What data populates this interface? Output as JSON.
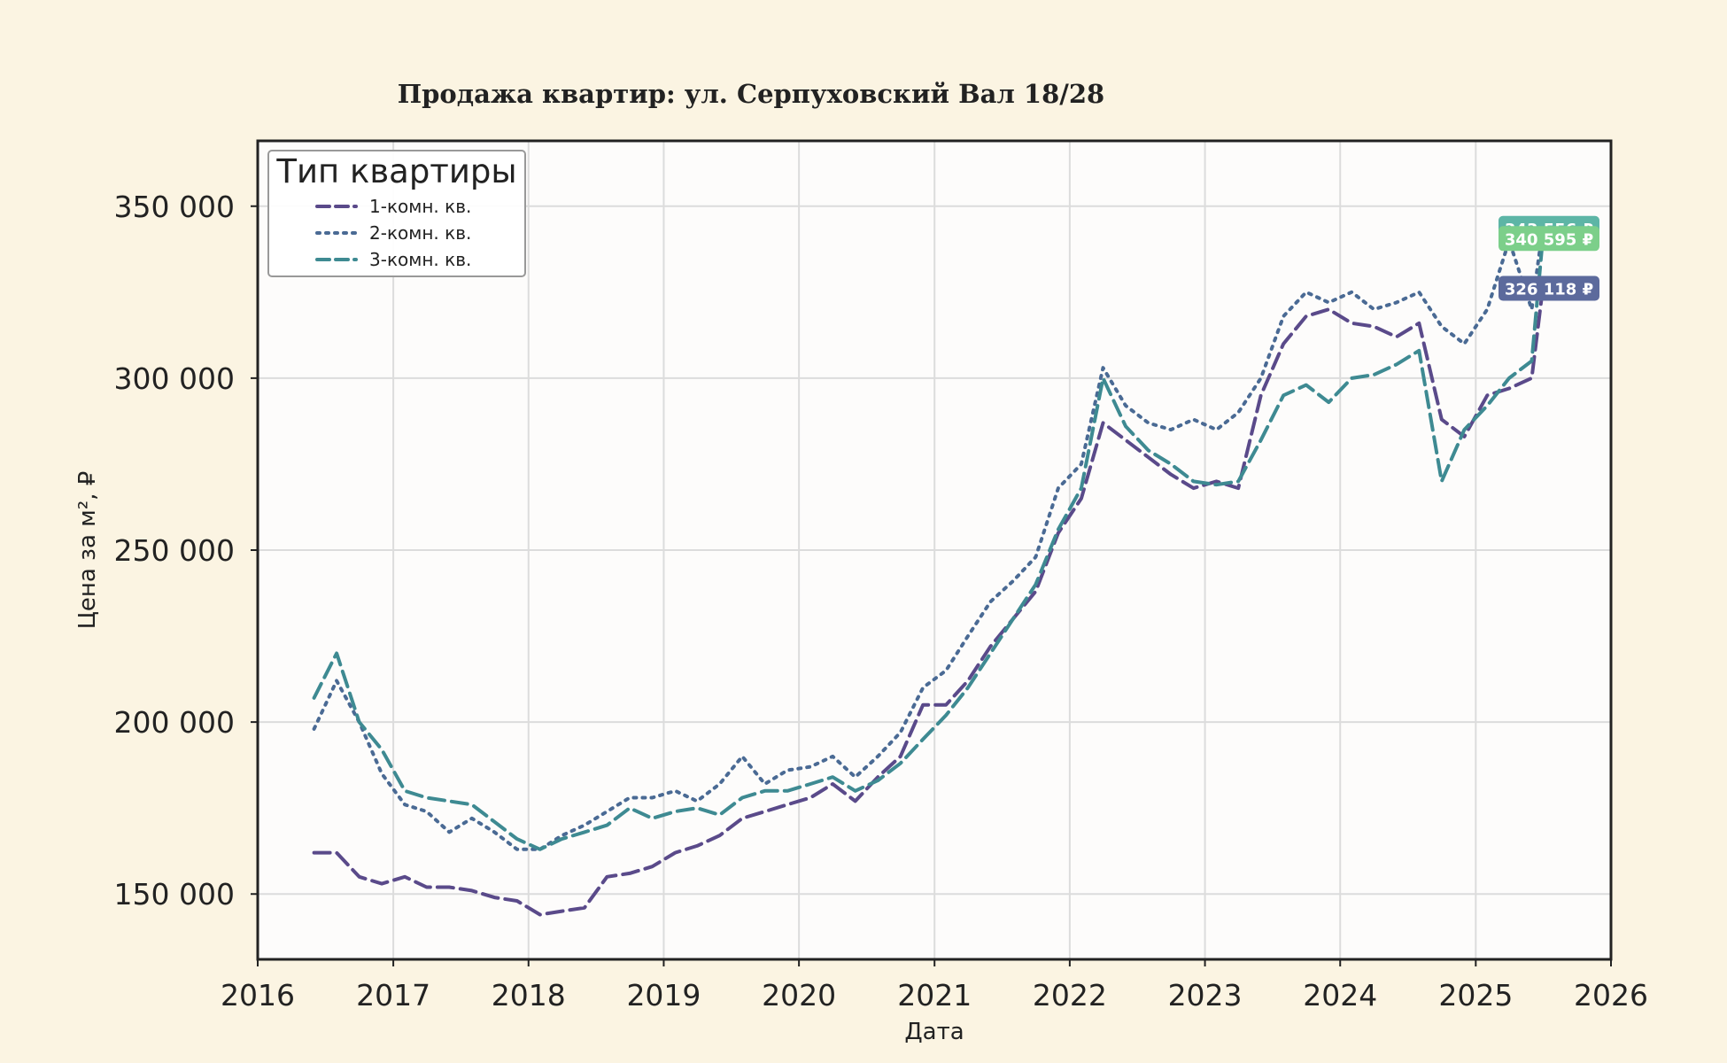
{
  "chart_data": {
    "type": "line",
    "title": "Продажа квартир: ул. Серпуховский Вал 18/28",
    "xlabel": "Дата",
    "ylabel": "Цена за м², ₽",
    "xlim": [
      "2016-01-01",
      "2026-01-01"
    ],
    "ylim": [
      131000,
      369000
    ],
    "x_ticks": [
      "2016",
      "2017",
      "2018",
      "2019",
      "2020",
      "2021",
      "2022",
      "2023",
      "2024",
      "2025",
      "2026"
    ],
    "y_ticks": [
      150000,
      200000,
      250000,
      300000,
      350000
    ],
    "y_tick_labels": [
      "150 000",
      "200 000",
      "250 000",
      "300 000",
      "350 000"
    ],
    "grid": true,
    "legend": {
      "title": "Тип квартиры",
      "position": "top-left"
    },
    "series": [
      {
        "name": "1-комн. кв.",
        "color": "#5a4a8a",
        "style": "dashed",
        "end_label": "326 118 ₽",
        "end_label_color": "#5c6a9c",
        "x": [
          "2016-06-01",
          "2016-08-01",
          "2016-10-01",
          "2016-12-01",
          "2017-02-01",
          "2017-04-01",
          "2017-06-01",
          "2017-08-01",
          "2017-10-01",
          "2017-12-01",
          "2018-02-01",
          "2018-04-01",
          "2018-06-01",
          "2018-08-01",
          "2018-10-01",
          "2018-12-01",
          "2019-02-01",
          "2019-04-01",
          "2019-06-01",
          "2019-08-01",
          "2019-10-01",
          "2019-12-01",
          "2020-02-01",
          "2020-04-01",
          "2020-06-01",
          "2020-08-01",
          "2020-10-01",
          "2020-12-01",
          "2021-02-01",
          "2021-04-01",
          "2021-06-01",
          "2021-08-01",
          "2021-10-01",
          "2021-12-01",
          "2022-02-01",
          "2022-04-01",
          "2022-06-01",
          "2022-08-01",
          "2022-10-01",
          "2022-12-01",
          "2023-02-01",
          "2023-04-01",
          "2023-06-01",
          "2023-08-01",
          "2023-10-01",
          "2023-12-01",
          "2024-02-01",
          "2024-04-01",
          "2024-06-01",
          "2024-08-01",
          "2024-10-01",
          "2024-12-01",
          "2025-02-01",
          "2025-04-01",
          "2025-06-01",
          "2025-07-01"
        ],
        "values": [
          162000,
          162000,
          155000,
          153000,
          155000,
          152000,
          152000,
          151000,
          149000,
          148000,
          144000,
          145000,
          146000,
          155000,
          156000,
          158000,
          162000,
          164000,
          167000,
          172000,
          174000,
          176000,
          178000,
          182000,
          177000,
          184000,
          190000,
          205000,
          205000,
          212000,
          222000,
          230000,
          238000,
          255000,
          265000,
          287000,
          282000,
          277000,
          272000,
          268000,
          270000,
          268000,
          295000,
          310000,
          318000,
          320000,
          316000,
          315000,
          312000,
          316000,
          288000,
          283000,
          295000,
          297000,
          300000,
          326118
        ]
      },
      {
        "name": "2-комн. кв.",
        "color": "#4a6a94",
        "style": "dotted",
        "end_label": "343 556 ₽",
        "end_label_color": "#5db5a6",
        "x": [
          "2016-06-01",
          "2016-08-01",
          "2016-10-01",
          "2016-12-01",
          "2017-02-01",
          "2017-04-01",
          "2017-06-01",
          "2017-08-01",
          "2017-10-01",
          "2017-12-01",
          "2018-02-01",
          "2018-04-01",
          "2018-06-01",
          "2018-08-01",
          "2018-10-01",
          "2018-12-01",
          "2019-02-01",
          "2019-04-01",
          "2019-06-01",
          "2019-08-01",
          "2019-10-01",
          "2019-12-01",
          "2020-02-01",
          "2020-04-01",
          "2020-06-01",
          "2020-08-01",
          "2020-10-01",
          "2020-12-01",
          "2021-02-01",
          "2021-04-01",
          "2021-06-01",
          "2021-08-01",
          "2021-10-01",
          "2021-12-01",
          "2022-02-01",
          "2022-04-01",
          "2022-06-01",
          "2022-08-01",
          "2022-10-01",
          "2022-12-01",
          "2023-02-01",
          "2023-04-01",
          "2023-06-01",
          "2023-08-01",
          "2023-10-01",
          "2023-12-01",
          "2024-02-01",
          "2024-04-01",
          "2024-06-01",
          "2024-08-01",
          "2024-10-01",
          "2024-12-01",
          "2025-02-01",
          "2025-04-01",
          "2025-06-01",
          "2025-07-01"
        ],
        "values": [
          198000,
          212000,
          200000,
          185000,
          176000,
          174000,
          168000,
          172000,
          168000,
          163000,
          163000,
          167000,
          170000,
          174000,
          178000,
          178000,
          180000,
          177000,
          182000,
          190000,
          182000,
          186000,
          187000,
          190000,
          184000,
          190000,
          197000,
          210000,
          215000,
          225000,
          235000,
          241000,
          248000,
          268000,
          275000,
          303000,
          292000,
          287000,
          285000,
          288000,
          285000,
          290000,
          300000,
          318000,
          325000,
          322000,
          325000,
          320000,
          322000,
          325000,
          315000,
          310000,
          320000,
          340000,
          320000,
          343556
        ]
      },
      {
        "name": "3-комн. кв.",
        "color": "#3e8a92",
        "style": "dashed",
        "end_label": "340 595 ₽",
        "end_label_color": "#7ccf8a",
        "x": [
          "2016-06-01",
          "2016-08-01",
          "2016-10-01",
          "2016-12-01",
          "2017-02-01",
          "2017-04-01",
          "2017-06-01",
          "2017-08-01",
          "2017-10-01",
          "2017-12-01",
          "2018-02-01",
          "2018-04-01",
          "2018-06-01",
          "2018-08-01",
          "2018-10-01",
          "2018-12-01",
          "2019-02-01",
          "2019-04-01",
          "2019-06-01",
          "2019-08-01",
          "2019-10-01",
          "2019-12-01",
          "2020-02-01",
          "2020-04-01",
          "2020-06-01",
          "2020-08-01",
          "2020-10-01",
          "2020-12-01",
          "2021-02-01",
          "2021-04-01",
          "2021-06-01",
          "2021-08-01",
          "2021-10-01",
          "2021-12-01",
          "2022-02-01",
          "2022-04-01",
          "2022-06-01",
          "2022-08-01",
          "2022-10-01",
          "2022-12-01",
          "2023-02-01",
          "2023-04-01",
          "2023-06-01",
          "2023-08-01",
          "2023-10-01",
          "2023-12-01",
          "2024-02-01",
          "2024-04-01",
          "2024-06-01",
          "2024-08-01",
          "2024-10-01",
          "2024-12-01",
          "2025-02-01",
          "2025-04-01",
          "2025-06-01",
          "2025-07-01"
        ],
        "values": [
          207000,
          220000,
          200000,
          192000,
          180000,
          178000,
          177000,
          176000,
          171000,
          166000,
          163000,
          166000,
          168000,
          170000,
          175000,
          172000,
          174000,
          175000,
          173000,
          178000,
          180000,
          180000,
          182000,
          184000,
          180000,
          183000,
          188000,
          195000,
          202000,
          210000,
          220000,
          230000,
          240000,
          256000,
          268000,
          300000,
          286000,
          279000,
          275000,
          270000,
          269000,
          270000,
          282000,
          295000,
          298000,
          293000,
          300000,
          301000,
          304000,
          308000,
          270000,
          285000,
          292000,
          300000,
          305000,
          340595
        ]
      }
    ]
  }
}
